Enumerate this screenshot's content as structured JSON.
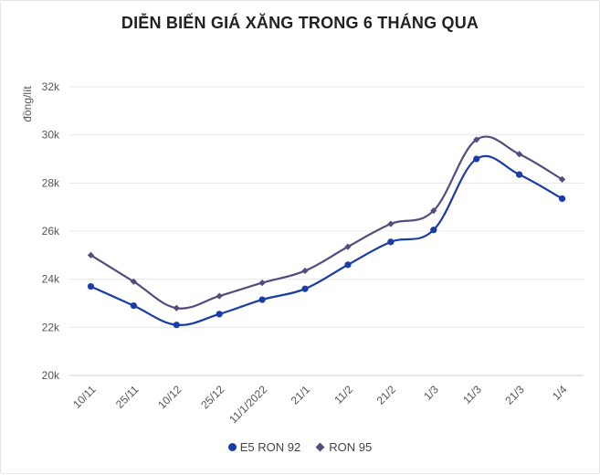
{
  "chart_data": {
    "type": "line",
    "title": "DIỄN BIẾN GIÁ XĂNG TRONG 6 THÁNG QUA",
    "ylabel": "đồng/lít",
    "xlabel": "",
    "categories": [
      "10/11",
      "25/11",
      "10/12",
      "25/12",
      "11/1/2022",
      "21/1",
      "11/2",
      "21/2",
      "1/3",
      "11/3",
      "21/3",
      "1/4"
    ],
    "ylim": [
      20000,
      32000
    ],
    "yticks": [
      20000,
      22000,
      24000,
      26000,
      28000,
      30000,
      32000
    ],
    "ytick_labels": [
      "20k",
      "22k",
      "24k",
      "26k",
      "28k",
      "30k",
      "32k"
    ],
    "grid": true,
    "legend": "bottom",
    "series": [
      {
        "name": "E5 RON 92",
        "color": "#1a3ca8",
        "marker": "circle",
        "values": [
          23700,
          22900,
          22100,
          22550,
          23150,
          23600,
          24600,
          25550,
          26050,
          29000,
          28350,
          27350
        ]
      },
      {
        "name": "RON 95",
        "color": "#574a7e",
        "marker": "diamond",
        "values": [
          25000,
          23900,
          22800,
          23300,
          23850,
          24350,
          25350,
          26300,
          26850,
          29800,
          29200,
          28150
        ]
      }
    ]
  }
}
